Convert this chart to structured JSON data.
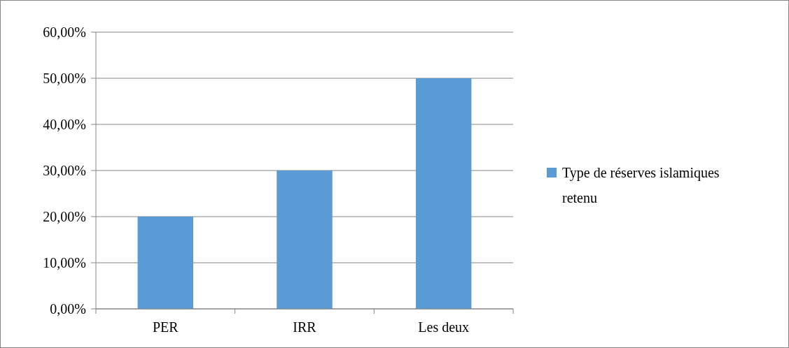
{
  "chart_data": {
    "type": "bar",
    "categories": [
      "PER",
      "IRR",
      "Les deux"
    ],
    "series": [
      {
        "name": "Type de réserves islamiques retenu",
        "color": "#5b9bd5",
        "values": [
          20,
          30,
          50
        ]
      }
    ],
    "ylim": [
      0,
      60
    ],
    "yticks": [
      {
        "value": 0,
        "label": "0,00%"
      },
      {
        "value": 10,
        "label": "10,00%"
      },
      {
        "value": 20,
        "label": "20,00%"
      },
      {
        "value": 30,
        "label": "30,00%"
      },
      {
        "value": 40,
        "label": "40,00%"
      },
      {
        "value": 50,
        "label": "50,00%"
      },
      {
        "value": 60,
        "label": "60,00%"
      }
    ],
    "grid": "y",
    "legend": "right"
  }
}
